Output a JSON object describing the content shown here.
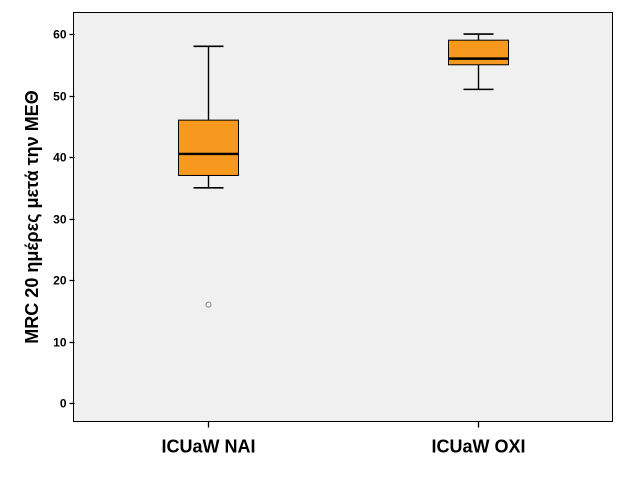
{
  "chart_data": {
    "type": "boxplot",
    "ylabel": "MRC 20 ημέρες μετά την ΜΕΘ",
    "xlabel": "",
    "ylim": [
      -3,
      63.5
    ],
    "yticks": [
      0,
      10,
      20,
      30,
      40,
      50,
      60
    ],
    "grid": false,
    "categories": [
      "ICUaW NAI",
      "ICUaW OXI"
    ],
    "boxes": [
      {
        "category": "ICUaW NAI",
        "whisker_low": 35,
        "q1": 37,
        "median": 40.5,
        "q3": 46,
        "whisker_high": 58,
        "outliers": [
          16
        ]
      },
      {
        "category": "ICUaW OXI",
        "whisker_low": 51,
        "q1": 55,
        "median": 56,
        "q3": 59,
        "whisker_high": 60,
        "outliers": []
      }
    ],
    "colors": {
      "box_fill": "#F7991F",
      "plot_background": "#F0F0F0",
      "line": "#000000",
      "outlier": "#7F7F7F"
    }
  }
}
